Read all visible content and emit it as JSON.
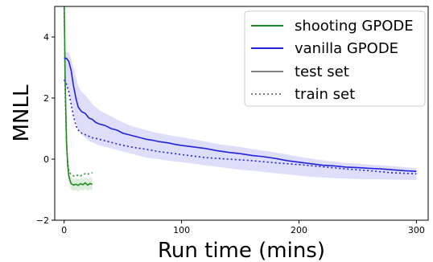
{
  "chart_data": {
    "type": "line",
    "title": "",
    "xlabel": "Run time (mins)",
    "ylabel": "MNLL",
    "xlim": [
      -8,
      310
    ],
    "ylim": [
      -2,
      5
    ],
    "xticks": [
      0,
      100,
      200,
      300
    ],
    "yticks": [
      -2,
      0,
      2,
      4
    ],
    "xtick_labels": [
      "0",
      "100",
      "200",
      "300"
    ],
    "ytick_labels": [
      "−2",
      "0",
      "2",
      "4"
    ],
    "grid": false,
    "legend_position": "top-right",
    "legend": [
      "shooting GPODE",
      "vanilla GPODE",
      "test set",
      "train set"
    ],
    "series": [
      {
        "name": "shooting GPODE",
        "split": "test set",
        "color": "#228B22",
        "x": [
          0,
          1,
          2,
          3,
          4,
          5,
          6,
          8,
          10,
          12,
          14,
          16,
          18,
          20,
          22,
          24
        ],
        "y": [
          5.2,
          2.4,
          0.6,
          -0.2,
          -0.55,
          -0.7,
          -0.8,
          -0.85,
          -0.82,
          -0.86,
          -0.8,
          -0.84,
          -0.78,
          -0.85,
          -0.8,
          -0.82
        ],
        "band_upper": [
          5.2,
          3.0,
          1.0,
          0.1,
          -0.35,
          -0.5,
          -0.6,
          -0.65,
          -0.62,
          -0.66,
          -0.6,
          -0.64,
          -0.58,
          -0.65,
          -0.6,
          -0.62
        ],
        "band_lower": [
          5.2,
          1.8,
          0.2,
          -0.5,
          -0.75,
          -0.9,
          -1.0,
          -1.05,
          -1.02,
          -1.06,
          -1.0,
          -1.04,
          -0.98,
          -1.05,
          -1.0,
          -1.02
        ]
      },
      {
        "name": "shooting GPODE",
        "split": "train set",
        "color": "#228B22",
        "x": [
          0,
          1,
          2,
          3,
          4,
          5,
          6,
          8,
          10,
          12,
          14,
          16,
          18,
          20,
          22,
          24
        ],
        "y": [
          5.2,
          2.0,
          0.5,
          -0.1,
          -0.35,
          -0.45,
          -0.5,
          -0.55,
          -0.55,
          -0.52,
          -0.55,
          -0.5,
          -0.48,
          -0.5,
          -0.45,
          -0.45
        ]
      },
      {
        "name": "vanilla GPODE",
        "split": "test set",
        "color": "#2222dd",
        "x": [
          0,
          2,
          4,
          6,
          8,
          10,
          12,
          15,
          18,
          21,
          24,
          27,
          30,
          35,
          40,
          45,
          50,
          55,
          60,
          65,
          70,
          75,
          80,
          85,
          90,
          95,
          100,
          110,
          120,
          130,
          140,
          150,
          160,
          170,
          180,
          190,
          200,
          210,
          220,
          230,
          240,
          250,
          260,
          270,
          280,
          290,
          300
        ],
        "y": [
          3.3,
          3.3,
          3.2,
          2.9,
          2.4,
          2.0,
          1.7,
          1.55,
          1.5,
          1.35,
          1.3,
          1.2,
          1.15,
          1.1,
          1.0,
          0.95,
          0.85,
          0.8,
          0.75,
          0.7,
          0.65,
          0.62,
          0.58,
          0.55,
          0.52,
          0.48,
          0.45,
          0.4,
          0.35,
          0.28,
          0.22,
          0.18,
          0.12,
          0.08,
          0.02,
          -0.05,
          -0.1,
          -0.15,
          -0.2,
          -0.22,
          -0.26,
          -0.28,
          -0.3,
          -0.32,
          -0.35,
          -0.38,
          -0.4
        ],
        "band_upper": [
          3.5,
          3.5,
          3.5,
          3.3,
          3.0,
          2.7,
          2.4,
          2.2,
          2.1,
          1.95,
          1.8,
          1.7,
          1.6,
          1.5,
          1.4,
          1.3,
          1.2,
          1.12,
          1.05,
          1.0,
          0.95,
          0.9,
          0.85,
          0.82,
          0.78,
          0.75,
          0.72,
          0.65,
          0.58,
          0.5,
          0.45,
          0.4,
          0.33,
          0.28,
          0.22,
          0.15,
          0.08,
          0.02,
          -0.04,
          -0.08,
          -0.12,
          -0.15,
          -0.18,
          -0.2,
          -0.23,
          -0.26,
          -0.3
        ],
        "band_lower": [
          2.6,
          2.4,
          2.2,
          1.9,
          1.5,
          1.2,
          0.95,
          0.8,
          0.7,
          0.6,
          0.55,
          0.5,
          0.45,
          0.4,
          0.35,
          0.3,
          0.25,
          0.2,
          0.15,
          0.1,
          0.05,
          0.02,
          0.0,
          -0.03,
          -0.06,
          -0.08,
          -0.1,
          -0.15,
          -0.2,
          -0.25,
          -0.3,
          -0.35,
          -0.38,
          -0.42,
          -0.46,
          -0.5,
          -0.54,
          -0.58,
          -0.6,
          -0.62,
          -0.64,
          -0.65,
          -0.66,
          -0.66,
          -0.67,
          -0.68,
          -0.68
        ]
      },
      {
        "name": "vanilla GPODE",
        "split": "train set",
        "color": "#2222dd",
        "x": [
          0,
          2,
          4,
          6,
          8,
          10,
          12,
          15,
          18,
          21,
          24,
          27,
          30,
          35,
          40,
          45,
          50,
          60,
          70,
          80,
          90,
          100,
          120,
          140,
          160,
          180,
          200,
          220,
          240,
          260,
          280,
          300
        ],
        "y": [
          2.6,
          2.45,
          2.2,
          1.8,
          1.4,
          1.1,
          0.95,
          0.85,
          0.8,
          0.75,
          0.7,
          0.68,
          0.65,
          0.6,
          0.55,
          0.5,
          0.45,
          0.38,
          0.32,
          0.25,
          0.2,
          0.15,
          0.05,
          0.0,
          -0.05,
          -0.12,
          -0.18,
          -0.25,
          -0.32,
          -0.38,
          -0.45,
          -0.48
        ]
      }
    ]
  }
}
